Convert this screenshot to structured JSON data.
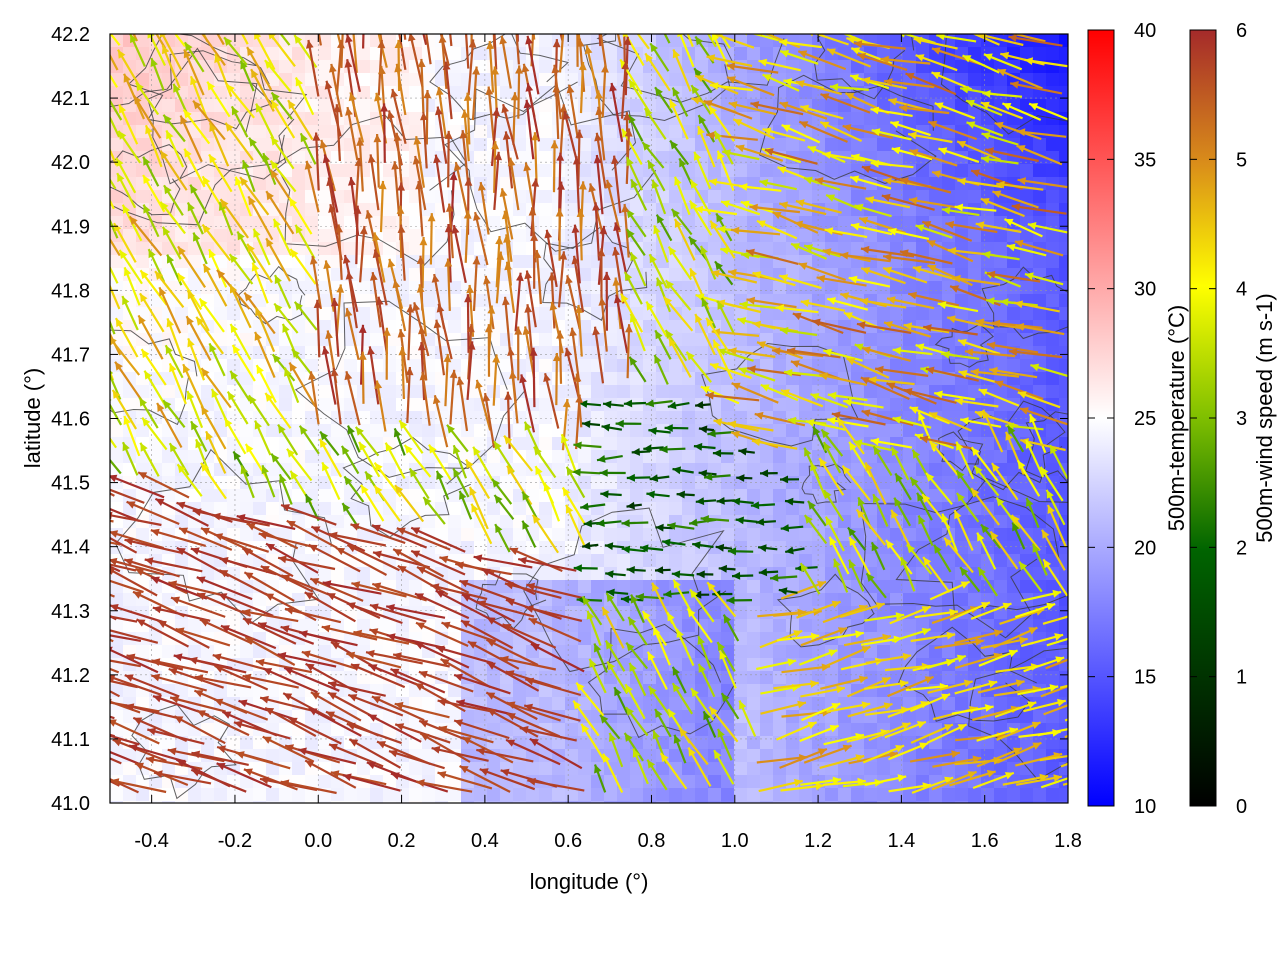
{
  "chart_data": {
    "type": "vector_field_with_colormap_and_contours",
    "xlabel": "longitude (°)",
    "ylabel": "latitude (°)",
    "xlim": [
      -0.5,
      1.8
    ],
    "ylim": [
      41.0,
      42.2
    ],
    "x_ticks": [
      -0.4,
      -0.2,
      0.0,
      0.2,
      0.4,
      0.6,
      0.8,
      1.0,
      1.2,
      1.4,
      1.6,
      1.8
    ],
    "x_tick_labels": [
      "-0.4",
      "-0.2",
      "0.0",
      "0.2",
      "0.4",
      "0.6",
      "0.8",
      "1.0",
      "1.2",
      "1.4",
      "1.6",
      "1.8"
    ],
    "y_ticks": [
      41.0,
      41.1,
      41.2,
      41.3,
      41.4,
      41.5,
      41.6,
      41.7,
      41.8,
      41.9,
      42.0,
      42.1,
      42.2
    ],
    "y_tick_labels": [
      "41.0",
      "41.1",
      "41.2",
      "41.3",
      "41.4",
      "41.5",
      "41.6",
      "41.7",
      "41.8",
      "41.9",
      "42.0",
      "42.1",
      "42.2"
    ],
    "grid": true,
    "colorbars": [
      {
        "label": "500m-temperature (°C)",
        "range": [
          10,
          40
        ],
        "ticks": [
          10,
          15,
          20,
          25,
          30,
          35,
          40
        ],
        "tick_labels": [
          "10",
          "15",
          "20",
          "25",
          "30",
          "35",
          "40"
        ],
        "colors": [
          "#0000ff",
          "#ffffff",
          "#ff0000"
        ]
      },
      {
        "label": "500m-wind speed (m s-1)",
        "range": [
          0,
          6
        ],
        "ticks": [
          0,
          1,
          2,
          3,
          4,
          5,
          6
        ],
        "tick_labels": [
          "0",
          "1",
          "2",
          "3",
          "4",
          "5",
          "6"
        ],
        "colors": [
          "#000000",
          "#006400",
          "#7fbf00",
          "#ffff00",
          "#d98c1a",
          "#a52a2a"
        ]
      }
    ],
    "wind_regions": [
      {
        "region": "southwest (lon -0.5 to 0.6, lat 41.0 to 41.5)",
        "direction_deg": 160,
        "speed": 6
      },
      {
        "region": "north-central (lon 0.0 to 0.7, lat 41.5 to 42.2)",
        "direction_deg": 90,
        "speed": 5.5
      },
      {
        "region": "east (lon 1.0 to 1.8, lat 41.6 to 42.1)",
        "direction_deg": 160,
        "speed": 4
      },
      {
        "region": "southeast (lon 1.1 to 1.8, lat 41.0 to 41.3)",
        "direction_deg": 15,
        "speed": 4.5
      },
      {
        "region": "center (lon 0.6 to 1.2, lat 41.3 to 41.6)",
        "direction_deg": 180,
        "speed": 1.5
      }
    ]
  }
}
